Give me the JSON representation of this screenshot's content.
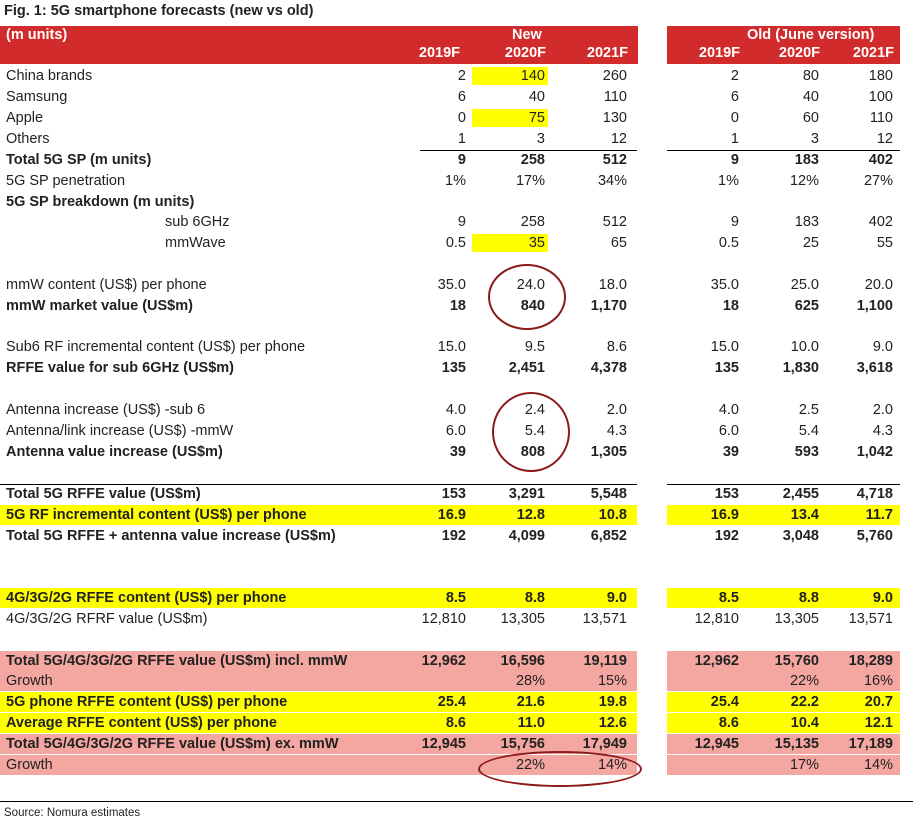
{
  "title": "Fig. 1: 5G smartphone forecasts (new vs old)",
  "header": {
    "units_label": "(m units)",
    "new_label": "New",
    "old_label": "Old (June version)",
    "years": [
      "2019F",
      "2020F",
      "2021F"
    ]
  },
  "colors": {
    "header_red": "#d22b2b",
    "highlight_yellow": "#ffff00",
    "pink_band": "#f4a6a0",
    "circle": "#8b1a1a"
  },
  "rows": [
    {
      "label": "China brands",
      "new": [
        "2",
        "140",
        "260"
      ],
      "old": [
        "2",
        "80",
        "180"
      ]
    },
    {
      "label": "Samsung",
      "new": [
        "6",
        "40",
        "110"
      ],
      "old": [
        "6",
        "40",
        "100"
      ]
    },
    {
      "label": "Apple",
      "new": [
        "0",
        "75",
        "130"
      ],
      "old": [
        "0",
        "60",
        "110"
      ]
    },
    {
      "label": "Others",
      "new": [
        "1",
        "3",
        "12"
      ],
      "old": [
        "1",
        "3",
        "12"
      ]
    },
    {
      "label": "Total 5G SP (m units)",
      "new": [
        "9",
        "258",
        "512"
      ],
      "old": [
        "9",
        "183",
        "402"
      ]
    },
    {
      "label": "5G SP penetration",
      "new": [
        "1%",
        "17%",
        "34%"
      ],
      "old": [
        "1%",
        "12%",
        "27%"
      ]
    },
    {
      "label": "5G SP breakdown (m units)",
      "new": [
        "",
        "",
        ""
      ],
      "old": [
        "",
        "",
        ""
      ]
    },
    {
      "label": "sub 6GHz",
      "new": [
        "9",
        "258",
        "512"
      ],
      "old": [
        "9",
        "183",
        "402"
      ]
    },
    {
      "label": "mmWave",
      "new": [
        "0.5",
        "35",
        "65"
      ],
      "old": [
        "0.5",
        "25",
        "55"
      ]
    },
    {
      "label": "mmW content (US$) per phone",
      "new": [
        "35.0",
        "24.0",
        "18.0"
      ],
      "old": [
        "35.0",
        "25.0",
        "20.0"
      ]
    },
    {
      "label": "mmW market value (US$m)",
      "new": [
        "18",
        "840",
        "1,170"
      ],
      "old": [
        "18",
        "625",
        "1,100"
      ]
    },
    {
      "label": "Sub6 RF incremental content (US$) per phone",
      "new": [
        "15.0",
        "9.5",
        "8.6"
      ],
      "old": [
        "15.0",
        "10.0",
        "9.0"
      ]
    },
    {
      "label": "RFFE value for sub 6GHz (US$m)",
      "new": [
        "135",
        "2,451",
        "4,378"
      ],
      "old": [
        "135",
        "1,830",
        "3,618"
      ]
    },
    {
      "label": "Antenna increase (US$) -sub 6",
      "new": [
        "4.0",
        "2.4",
        "2.0"
      ],
      "old": [
        "4.0",
        "2.5",
        "2.0"
      ]
    },
    {
      "label": "Antenna/link increase (US$) -mmW",
      "new": [
        "6.0",
        "5.4",
        "4.3"
      ],
      "old": [
        "6.0",
        "5.4",
        "4.3"
      ]
    },
    {
      "label": "Antenna value increase (US$m)",
      "new": [
        "39",
        "808",
        "1,305"
      ],
      "old": [
        "39",
        "593",
        "1,042"
      ]
    },
    {
      "label": "Total 5G RFFE value (US$m)",
      "new": [
        "153",
        "3,291",
        "5,548"
      ],
      "old": [
        "153",
        "2,455",
        "4,718"
      ]
    },
    {
      "label": "5G RF incremental content (US$) per phone",
      "new": [
        "16.9",
        "12.8",
        "10.8"
      ],
      "old": [
        "16.9",
        "13.4",
        "11.7"
      ]
    },
    {
      "label": "Total 5G RFFE + antenna value increase (US$m)",
      "new": [
        "192",
        "4,099",
        "6,852"
      ],
      "old": [
        "192",
        "3,048",
        "5,760"
      ]
    },
    {
      "label": "4G/3G/2G RFFE content (US$) per phone",
      "new": [
        "8.5",
        "8.8",
        "9.0"
      ],
      "old": [
        "8.5",
        "8.8",
        "9.0"
      ]
    },
    {
      "label": "4G/3G/2G RFRF value (US$m)",
      "new": [
        "12,810",
        "13,305",
        "13,571"
      ],
      "old": [
        "12,810",
        "13,305",
        "13,571"
      ]
    },
    {
      "label": "Total 5G/4G/3G/2G RFFE value (US$m) incl. mmW",
      "new": [
        "12,962",
        "16,596",
        "19,119"
      ],
      "old": [
        "12,962",
        "15,760",
        "18,289"
      ]
    },
    {
      "label": "Growth",
      "new": [
        "",
        "28%",
        "15%"
      ],
      "old": [
        "",
        "22%",
        "16%"
      ]
    },
    {
      "label": "5G phone RFFE content (US$) per phone",
      "new": [
        "25.4",
        "21.6",
        "19.8"
      ],
      "old": [
        "25.4",
        "22.2",
        "20.7"
      ]
    },
    {
      "label": "Average RFFE content (US$) per phone",
      "new": [
        "8.6",
        "11.0",
        "12.6"
      ],
      "old": [
        "8.6",
        "10.4",
        "12.1"
      ]
    },
    {
      "label": "Total 5G/4G/3G/2G RFFE value (US$m) ex. mmW",
      "new": [
        "12,945",
        "15,756",
        "17,949"
      ],
      "old": [
        "12,945",
        "15,135",
        "17,189"
      ]
    },
    {
      "label": "Growth",
      "new": [
        "",
        "22%",
        "14%"
      ],
      "old": [
        "",
        "17%",
        "14%"
      ]
    }
  ],
  "source": "Source: Nomura estimates"
}
